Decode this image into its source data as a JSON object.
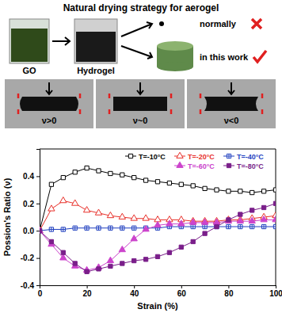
{
  "illustration": {
    "title": "Natural drying strategy for aerogel",
    "stages": [
      "GO",
      "Hydrogel"
    ],
    "outcomes": [
      "normally",
      "in this work"
    ],
    "panels": [
      "ν>0",
      "ν~0",
      "ν<0"
    ]
  },
  "chart_data": {
    "type": "line",
    "x_label": "Strain (%)",
    "y_label": "Possion's Ratio (ν)",
    "x": [
      0,
      5,
      10,
      15,
      20,
      25,
      30,
      35,
      40,
      45,
      50,
      55,
      60,
      65,
      70,
      75,
      80,
      85,
      90,
      95,
      100
    ],
    "xlim": [
      0,
      100
    ],
    "xticks": [
      0,
      20,
      40,
      60,
      80,
      100
    ],
    "ylim": [
      -0.4,
      0.6
    ],
    "yticks": [
      -0.4,
      -0.2,
      {
        "value": 0,
        "label": "0.0"
      },
      0.2,
      0.4
    ],
    "legend": "upper right",
    "series": [
      {
        "name": "T=-10°C",
        "color": "#000000",
        "marker": "square-open",
        "values": [
          0,
          0.34,
          0.39,
          0.43,
          0.46,
          0.44,
          0.42,
          0.41,
          0.39,
          0.37,
          0.36,
          0.35,
          0.34,
          0.33,
          0.31,
          0.3,
          0.29,
          0.29,
          0.28,
          0.29,
          0.3
        ]
      },
      {
        "name": "T=-20°C",
        "color": "#e8302a",
        "marker": "triangle-open",
        "values": [
          0,
          0.16,
          0.22,
          0.2,
          0.15,
          0.13,
          0.11,
          0.1,
          0.09,
          0.09,
          0.08,
          0.08,
          0.08,
          0.07,
          0.07,
          0.07,
          0.08,
          0.08,
          0.09,
          0.1,
          0.11
        ]
      },
      {
        "name": "T=-40°C",
        "color": "#1f3fbf",
        "marker": "square-cross",
        "values": [
          0,
          0.01,
          0.01,
          0.02,
          0.02,
          0.02,
          0.02,
          0.02,
          0.02,
          0.02,
          0.02,
          0.03,
          0.03,
          0.03,
          0.03,
          0.03,
          0.03,
          0.03,
          0.03,
          0.03,
          0.03
        ]
      },
      {
        "name": "T=-60°C",
        "color": "#cc44cc",
        "marker": "triangle",
        "values": [
          0,
          -0.1,
          -0.2,
          -0.26,
          -0.29,
          -0.27,
          -0.22,
          -0.14,
          -0.06,
          0.01,
          0.04,
          0.05,
          0.05,
          0.06,
          0.06,
          0.06,
          0.07,
          0.07,
          0.07,
          0.08,
          0.08
        ]
      },
      {
        "name": "T=-80°C",
        "color": "#7a1f8a",
        "marker": "square",
        "values": [
          0,
          -0.08,
          -0.16,
          -0.24,
          -0.3,
          -0.28,
          -0.26,
          -0.24,
          -0.22,
          -0.21,
          -0.19,
          -0.16,
          -0.12,
          -0.08,
          -0.02,
          0.03,
          0.08,
          0.12,
          0.15,
          0.17,
          0.2
        ]
      }
    ]
  }
}
